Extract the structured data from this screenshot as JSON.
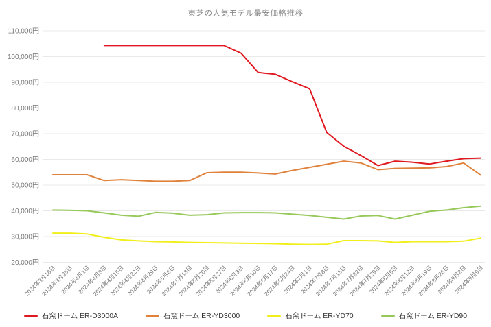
{
  "chart_data": {
    "type": "line",
    "title": "東芝の人気モデル最安価格推移",
    "ylim": [
      20000,
      110000
    ],
    "grid": "horizontal",
    "legend_position": "bottom",
    "colors": {
      "grid": "#e9e9e9",
      "axis_text": "#777777",
      "title_text": "#888888"
    },
    "y_axis": {
      "values": [
        110000,
        100000,
        90000,
        80000,
        70000,
        60000,
        50000,
        40000,
        30000,
        20000
      ],
      "labels": [
        "110,000円",
        "100,000円",
        "90,000円",
        "80,000円",
        "70,000円",
        "60,000円",
        "50,000円",
        "40,000円",
        "30,000円",
        "20,000円"
      ]
    },
    "categories": [
      "2024年3月18日",
      "2024年3月25日",
      "2024年4月1日",
      "2024年4月8日",
      "2024年4月15日",
      "2024年4月22日",
      "2024年4月29日",
      "2024年5月6日",
      "2024年5月13日",
      "2024年5月20日",
      "2024年5月27日",
      "2024年6月3日",
      "2024年6月10日",
      "2024年6月17日",
      "2024年6月24日",
      "2024年7月1日",
      "2024年7月8日",
      "2024年7月15日",
      "2024年7月22日",
      "2024年7月29日",
      "2024年8月5日",
      "2024年8月12日",
      "2024年8月19日",
      "2024年8月26日",
      "2024年9月2日",
      "2024年9月9日"
    ],
    "series": [
      {
        "id": "er-d3000a",
        "name": "石窯ドーム ER-D3000A",
        "color": "#e01820",
        "values": [
          null,
          null,
          null,
          104300,
          104300,
          104300,
          104300,
          104300,
          104300,
          104300,
          104300,
          101300,
          93800,
          93100,
          90200,
          87500,
          70500,
          65100,
          61500,
          57600,
          59300,
          58900,
          58200,
          59300,
          60300,
          60500
        ]
      },
      {
        "id": "er-yd3000",
        "name": "石窯ドーム ER-YD3000",
        "color": "#e0823c",
        "values": [
          54000,
          54000,
          54000,
          51800,
          52100,
          51800,
          51500,
          51500,
          51800,
          54800,
          55000,
          55000,
          54700,
          54300,
          55700,
          56900,
          58100,
          59300,
          58600,
          56000,
          56500,
          56600,
          56700,
          57200,
          58600,
          53900
        ]
      },
      {
        "id": "er-yd70",
        "name": "石窯ドーム ER-YD70",
        "color": "#f0ef1a",
        "values": [
          31300,
          31300,
          31000,
          29700,
          28700,
          28300,
          28000,
          27900,
          27700,
          27600,
          27500,
          27400,
          27300,
          27200,
          27000,
          26900,
          27000,
          28400,
          28400,
          28300,
          27700,
          28000,
          28000,
          28000,
          28200,
          29400
        ]
      },
      {
        "id": "er-yd90",
        "name": "石窯ドーム ER-YD90",
        "color": "#96c85a",
        "values": [
          40300,
          40200,
          40000,
          39200,
          38300,
          37900,
          39400,
          39100,
          38300,
          38500,
          39200,
          39300,
          39300,
          39200,
          38700,
          38200,
          37500,
          36800,
          38000,
          38200,
          36800,
          38300,
          39800,
          40300,
          41200,
          41800
        ]
      }
    ]
  }
}
